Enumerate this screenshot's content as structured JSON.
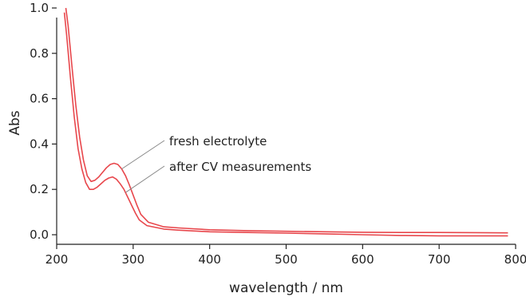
{
  "chart_data": {
    "type": "line",
    "title": "",
    "xlabel": "wavelength / nm",
    "ylabel": "Abs",
    "xlim": [
      200,
      800
    ],
    "ylim": [
      0.0,
      1.0
    ],
    "x_ticks": [
      200,
      300,
      400,
      500,
      600,
      700,
      800
    ],
    "y_ticks": [
      0.0,
      0.2,
      0.4,
      0.6,
      0.8,
      1.0
    ],
    "x_tick_labels": [
      "200",
      "300",
      "400",
      "500",
      "600",
      "700",
      "800"
    ],
    "y_tick_labels": [
      "0.0",
      "0.2",
      "0.4",
      "0.6",
      "0.8",
      "1.0"
    ],
    "grid": false,
    "legend": "none",
    "series_color": "#e8474c",
    "leader_color": "#888888",
    "annotations": [
      {
        "text": "fresh electrolyte",
        "series_index": 0,
        "point_x": 285
      },
      {
        "text": "after CV measurements",
        "series_index": 1,
        "point_x": 290
      }
    ],
    "series": [
      {
        "x": [
          212,
          215,
          220,
          225,
          230,
          235,
          240,
          245,
          250,
          255,
          260,
          265,
          270,
          275,
          280,
          285,
          290,
          295,
          300,
          305,
          310,
          320,
          340,
          360,
          400,
          450,
          500,
          550,
          600,
          650,
          700,
          750,
          790
        ],
        "y": [
          1.0,
          0.92,
          0.74,
          0.57,
          0.43,
          0.33,
          0.26,
          0.235,
          0.24,
          0.255,
          0.275,
          0.295,
          0.31,
          0.315,
          0.31,
          0.29,
          0.26,
          0.22,
          0.175,
          0.13,
          0.09,
          0.055,
          0.035,
          0.03,
          0.022,
          0.018,
          0.015,
          0.013,
          0.011,
          0.01,
          0.01,
          0.009,
          0.008
        ]
      },
      {
        "x": [
          210,
          213,
          218,
          223,
          228,
          233,
          238,
          243,
          248,
          253,
          258,
          263,
          268,
          273,
          278,
          283,
          288,
          293,
          298,
          303,
          308,
          318,
          340,
          360,
          400,
          450,
          500,
          550,
          600,
          650,
          700,
          750,
          790
        ],
        "y": [
          0.98,
          0.88,
          0.69,
          0.52,
          0.38,
          0.29,
          0.23,
          0.2,
          0.2,
          0.21,
          0.225,
          0.24,
          0.25,
          0.255,
          0.245,
          0.225,
          0.2,
          0.165,
          0.13,
          0.095,
          0.065,
          0.04,
          0.025,
          0.02,
          0.013,
          0.01,
          0.007,
          0.004,
          0.0,
          -0.003,
          -0.005,
          -0.005,
          -0.005
        ]
      }
    ]
  }
}
